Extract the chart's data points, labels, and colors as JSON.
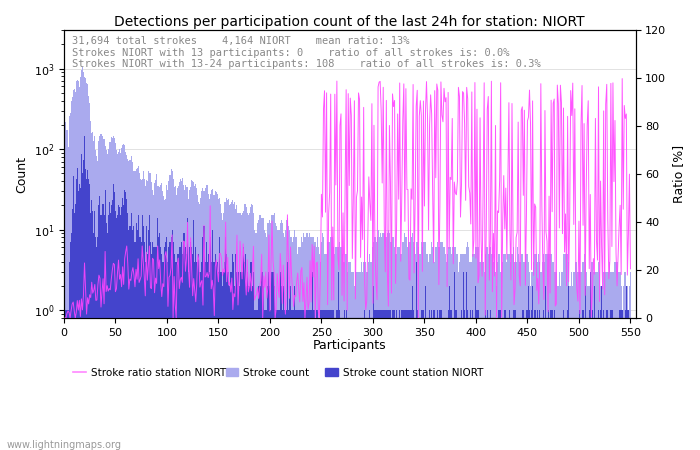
{
  "title": "Detections per participation count of the last 24h for station: NIORT",
  "xlabel": "Participants",
  "ylabel_left": "Count",
  "ylabel_right": "Ratio [%]",
  "annotation_lines": [
    "31,694 total strokes    4,164 NIORT    mean ratio: 13%",
    "Strokes NIORT with 13 participants: 0    ratio of all strokes is: 0.0%",
    "Strokes NIORT with 13-24 participants: 108    ratio of all strokes is: 0.3%"
  ],
  "xlim": [
    0,
    555
  ],
  "ylim_right": [
    0,
    120
  ],
  "xticks": [
    0,
    50,
    100,
    150,
    200,
    250,
    300,
    350,
    400,
    450,
    500,
    550
  ],
  "yticks_right": [
    0,
    20,
    40,
    60,
    80,
    100,
    120
  ],
  "color_total": "#aaaaee",
  "color_niort": "#4444cc",
  "color_ratio": "#ff44ff",
  "color_annotation": "#888888",
  "legend_stroke_count": {
    "label": "Stroke count",
    "color": "#aaaaee"
  },
  "legend_niort": {
    "label": "Stroke count station NIORT",
    "color": "#4444cc"
  },
  "legend_ratio": {
    "label": "Stroke ratio station NIORT",
    "color": "#ff88ff"
  },
  "watermark": "www.lightningmaps.org",
  "title_fontsize": 10,
  "annotation_fontsize": 7.5,
  "tick_fontsize": 8
}
